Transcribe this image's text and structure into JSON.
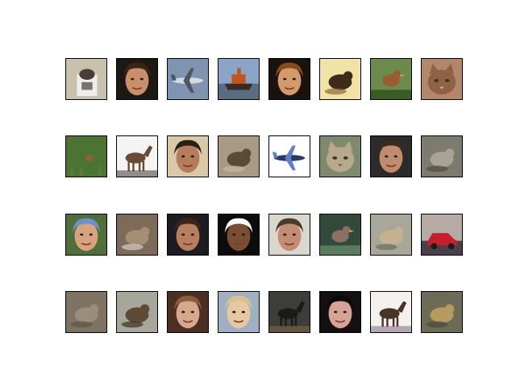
{
  "figure": {
    "background": "#ffffff",
    "frame_color": "#000000"
  },
  "rows": [
    {
      "tiles": [
        {
          "subject": "animal-in-box",
          "bg": "#c8c2ad",
          "fg": "#4a3f35",
          "accent": "#eeeeee"
        },
        {
          "subject": "face",
          "bg": "#1c1814",
          "fg": "#c98e6a",
          "accent": "#3a2418"
        },
        {
          "subject": "airplane",
          "bg": "#7f94b0",
          "fg": "#d7dbe0",
          "accent": "#4b5566"
        },
        {
          "subject": "ship",
          "bg": "#8aa5c7",
          "fg": "#c2551f",
          "accent": "#5a6d80"
        },
        {
          "subject": "face",
          "bg": "#1a120c",
          "fg": "#d49a6c",
          "accent": "#8a4a20"
        },
        {
          "subject": "animal",
          "bg": "#f1e3a6",
          "fg": "#3e2b1c",
          "accent": "#8d6a3c"
        },
        {
          "subject": "bird",
          "bg": "#6c8a4c",
          "fg": "#9b5b33",
          "accent": "#3a5a26"
        },
        {
          "subject": "cat",
          "bg": "#b5876a",
          "fg": "#8d6248",
          "accent": "#d9b38f"
        }
      ]
    },
    {
      "tiles": [
        {
          "subject": "grass",
          "bg": "#3f6a2c",
          "fg": "#577d3a",
          "accent": "#9a5d2e"
        },
        {
          "subject": "horse",
          "bg": "#f4f4f4",
          "fg": "#6a4a33",
          "accent": "#2d2520"
        },
        {
          "subject": "face",
          "bg": "#d9c9a8",
          "fg": "#b57d5b",
          "accent": "#2b1e15"
        },
        {
          "subject": "animal",
          "bg": "#a99a84",
          "fg": "#5c4a39",
          "accent": "#c5b89f"
        },
        {
          "subject": "airplane",
          "bg": "#ffffff",
          "fg": "#2a3a66",
          "accent": "#5f7ec4"
        },
        {
          "subject": "cat",
          "bg": "#7e8a6e",
          "fg": "#b9a88d",
          "accent": "#59604a"
        },
        {
          "subject": "face",
          "bg": "#2c2b29",
          "fg": "#c08b6e",
          "accent": "#3a2a1f"
        },
        {
          "subject": "animal",
          "bg": "#7d7b6f",
          "fg": "#a9a395",
          "accent": "#4e4c44"
        }
      ]
    },
    {
      "tiles": [
        {
          "subject": "face",
          "bg": "#4f6e3a",
          "fg": "#d7a37e",
          "accent": "#6c93c8"
        },
        {
          "subject": "animal",
          "bg": "#7d6a58",
          "fg": "#a58d76",
          "accent": "#d7cfc7"
        },
        {
          "subject": "face",
          "bg": "#1e1c22",
          "fg": "#b97e5e",
          "accent": "#3a2519"
        },
        {
          "subject": "face",
          "bg": "#0e0c0b",
          "fg": "#7a4e34",
          "accent": "#ffffff"
        },
        {
          "subject": "face",
          "bg": "#dad7d1",
          "fg": "#c48d72",
          "accent": "#4b3a2c"
        },
        {
          "subject": "bird",
          "bg": "#334a3a",
          "fg": "#8e6f65",
          "accent": "#5a7b5d"
        },
        {
          "subject": "animal",
          "bg": "#a8a79a",
          "fg": "#c3b191",
          "accent": "#6c6b5f"
        },
        {
          "subject": "car",
          "bg": "#b5aaa4",
          "fg": "#c3202c",
          "accent": "#4a4048"
        }
      ]
    },
    {
      "tiles": [
        {
          "subject": "animal",
          "bg": "#7e7263",
          "fg": "#9b8d7b",
          "accent": "#5e5448"
        },
        {
          "subject": "animal",
          "bg": "#a6a69a",
          "fg": "#5d4b35",
          "accent": "#3c3124"
        },
        {
          "subject": "face",
          "bg": "#4a2f22",
          "fg": "#d7a88c",
          "accent": "#8c5a3c"
        },
        {
          "subject": "face",
          "bg": "#9fb0c3",
          "fg": "#e6c8a4",
          "accent": "#d9c08e"
        },
        {
          "subject": "horse",
          "bg": "#3d3e3a",
          "fg": "#1c1a18",
          "accent": "#8b6a48"
        },
        {
          "subject": "face",
          "bg": "#141012",
          "fg": "#d5a397",
          "accent": "#0a0809"
        },
        {
          "subject": "horse",
          "bg": "#f3f0ee",
          "fg": "#4a3327",
          "accent": "#7a5e7c"
        },
        {
          "subject": "animal",
          "bg": "#6d6a56",
          "fg": "#b69b5f",
          "accent": "#4a4a40"
        }
      ]
    }
  ]
}
